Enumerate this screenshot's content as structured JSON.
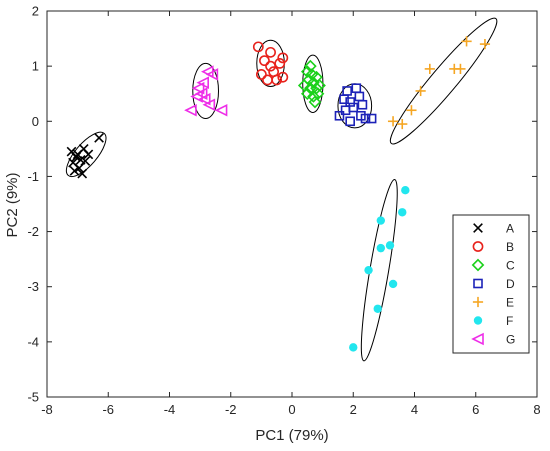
{
  "chart_data": {
    "type": "scatter",
    "title": "",
    "xlabel": "PC1 (79%)",
    "ylabel": "PC2 (9%)",
    "xlim": [
      -8,
      8
    ],
    "ylim": [
      -5,
      2
    ],
    "xticks": [
      "-8",
      "-6",
      "-4",
      "-2",
      "0",
      "2",
      "4",
      "6",
      "8"
    ],
    "yticks": [
      "-5",
      "-4",
      "-3",
      "-2",
      "-1",
      "0",
      "1",
      "2"
    ],
    "grid": false,
    "legend_position": "lower-right",
    "series": [
      {
        "name": "A",
        "marker": "x",
        "color": "#000000",
        "points": [
          [
            -7.2,
            -0.55
          ],
          [
            -7.15,
            -0.75
          ],
          [
            -7.1,
            -0.9
          ],
          [
            -7.05,
            -0.65
          ],
          [
            -7.0,
            -0.6
          ],
          [
            -6.95,
            -0.85
          ],
          [
            -6.9,
            -0.7
          ],
          [
            -6.85,
            -0.95
          ],
          [
            -6.8,
            -0.5
          ],
          [
            -6.75,
            -0.72
          ],
          [
            -6.65,
            -0.6
          ],
          [
            -6.3,
            -0.3
          ]
        ],
        "ellipse": {
          "cx": -6.72,
          "cy": -0.6,
          "rx": 0.7,
          "ry": 0.22,
          "angle_deg": 33
        }
      },
      {
        "name": "B",
        "marker": "o",
        "color": "#e8221c",
        "points": [
          [
            -1.1,
            1.35
          ],
          [
            -1.0,
            0.85
          ],
          [
            -0.9,
            1.1
          ],
          [
            -0.8,
            0.75
          ],
          [
            -0.7,
            1.0
          ],
          [
            -0.7,
            1.25
          ],
          [
            -0.6,
            0.9
          ],
          [
            -0.5,
            0.75
          ],
          [
            -0.4,
            1.05
          ],
          [
            -0.3,
            0.8
          ],
          [
            -0.3,
            1.15
          ]
        ],
        "ellipse": {
          "cx": -0.7,
          "cy": 1.05,
          "rx": 0.45,
          "ry": 0.42,
          "angle_deg": 0
        }
      },
      {
        "name": "C",
        "marker": "diamond",
        "color": "#1bd11b",
        "points": [
          [
            0.4,
            0.65
          ],
          [
            0.5,
            0.9
          ],
          [
            0.5,
            0.5
          ],
          [
            0.55,
            0.75
          ],
          [
            0.6,
            1.0
          ],
          [
            0.6,
            0.6
          ],
          [
            0.65,
            0.85
          ],
          [
            0.7,
            0.45
          ],
          [
            0.7,
            0.7
          ],
          [
            0.75,
            0.35
          ],
          [
            0.8,
            0.6
          ],
          [
            0.8,
            0.8
          ],
          [
            0.85,
            0.5
          ],
          [
            0.9,
            0.65
          ]
        ],
        "ellipse": {
          "cx": 0.68,
          "cy": 0.68,
          "rx": 0.33,
          "ry": 0.52,
          "angle_deg": 0
        }
      },
      {
        "name": "D",
        "marker": "square",
        "color": "#1c22b8",
        "points": [
          [
            1.55,
            0.1
          ],
          [
            1.7,
            0.4
          ],
          [
            1.75,
            0.2
          ],
          [
            1.8,
            0.55
          ],
          [
            1.9,
            0.0
          ],
          [
            1.9,
            0.35
          ],
          [
            2.0,
            0.25
          ],
          [
            2.1,
            0.6
          ],
          [
            2.2,
            0.45
          ],
          [
            2.25,
            0.1
          ],
          [
            2.3,
            0.3
          ],
          [
            2.4,
            0.05
          ],
          [
            2.6,
            0.05
          ]
        ],
        "ellipse": {
          "cx": 2.05,
          "cy": 0.28,
          "rx": 0.55,
          "ry": 0.4,
          "angle_deg": 0
        }
      },
      {
        "name": "E",
        "marker": "+",
        "color": "#f5a623",
        "points": [
          [
            3.3,
            0.0
          ],
          [
            3.6,
            -0.05
          ],
          [
            3.9,
            0.2
          ],
          [
            4.2,
            0.55
          ],
          [
            4.5,
            0.95
          ],
          [
            5.3,
            0.95
          ],
          [
            5.5,
            0.95
          ],
          [
            5.7,
            1.45
          ],
          [
            6.3,
            1.4
          ]
        ],
        "ellipse": {
          "cx": 4.95,
          "cy": 0.73,
          "rx": 2.05,
          "ry": 0.26,
          "angle_deg": 33.5
        }
      },
      {
        "name": "F",
        "marker": "filled-circle",
        "color": "#22e6ee",
        "points": [
          [
            2.0,
            -4.1
          ],
          [
            2.8,
            -3.4
          ],
          [
            2.5,
            -2.7
          ],
          [
            2.9,
            -2.3
          ],
          [
            3.2,
            -2.25
          ],
          [
            3.3,
            -2.95
          ],
          [
            2.9,
            -1.8
          ],
          [
            3.6,
            -1.65
          ],
          [
            3.7,
            -1.25
          ]
        ],
        "ellipse": {
          "cx": 2.85,
          "cy": -2.7,
          "rx": 1.72,
          "ry": 0.28,
          "angle_deg": 73
        }
      },
      {
        "name": "G",
        "marker": "triangle-left",
        "color": "#ee2ee8",
        "points": [
          [
            -3.3,
            0.2
          ],
          [
            -3.1,
            0.45
          ],
          [
            -3.05,
            0.6
          ],
          [
            -2.95,
            0.5
          ],
          [
            -2.9,
            0.7
          ],
          [
            -2.85,
            0.4
          ],
          [
            -2.75,
            0.9
          ],
          [
            -2.7,
            0.3
          ],
          [
            -2.6,
            0.85
          ],
          [
            -2.3,
            0.2
          ]
        ],
        "ellipse": {
          "cx": -2.82,
          "cy": 0.55,
          "rx": 0.42,
          "ry": 0.5,
          "angle_deg": 0
        }
      }
    ]
  }
}
